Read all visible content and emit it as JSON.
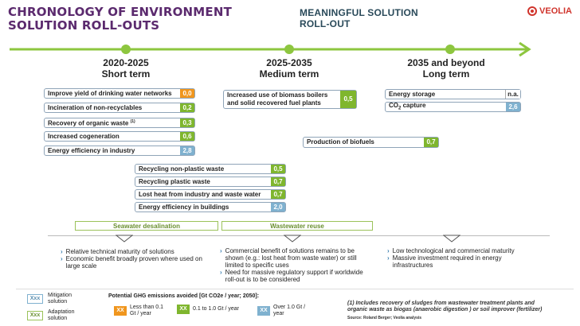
{
  "header": {
    "title_line1": "CHRONOLOGY OF ENVIRONMENT",
    "title_line2": "SOLUTION ROLL-OUTS",
    "subtitle_line1": "MEANINGFUL SOLUTION",
    "subtitle_line2": "ROLL-OUT",
    "logo_text": "VEOLIA"
  },
  "periods": [
    {
      "years": "2020-2025",
      "term": "Short term"
    },
    {
      "years": "2025-2035",
      "term": "Medium term"
    },
    {
      "years": "2035 and beyond",
      "term": "Long term"
    }
  ],
  "short_term": [
    {
      "label": "Improve yield of drinking water networks",
      "value": "0,0"
    },
    {
      "label": "Incineration of non-recyclables",
      "value": "0,2"
    },
    {
      "label": "Recovery of organic waste",
      "sup": "(1)",
      "value": "0,3"
    },
    {
      "label": "Increased cogeneration",
      "value": "0,6"
    },
    {
      "label": "Energy efficiency in industry",
      "value": "2,8"
    }
  ],
  "short_medium": [
    {
      "label": "Recycling non-plastic waste",
      "value": "0,5"
    },
    {
      "label": "Recycling plastic waste",
      "value": "0,7"
    },
    {
      "label": "Lost heat from industry and waste water",
      "value": "0,7"
    },
    {
      "label": "Energy efficiency in buildings",
      "value": "2,0"
    }
  ],
  "medium_term": [
    {
      "label_line1": "Increased use of biomass boilers",
      "label_line2": "and solid recovered fuel plants",
      "value": "0,5"
    },
    {
      "label": "Production of biofuels",
      "value": "0,7"
    }
  ],
  "long_term": [
    {
      "label": "Energy storage",
      "value": "n.a."
    },
    {
      "label": "CO",
      "sub": "2",
      "label_rest": " capture",
      "value": "2,6"
    }
  ],
  "adaptation": {
    "seawater": "Seawater desalination",
    "wastewater": "Wastewater reuse"
  },
  "bullets": {
    "short": [
      "Relative technical maturity of solutions",
      "Economic benefit broadly proven where used on large scale"
    ],
    "medium": [
      "Commercial benefit of solutions remains to be shown (e.g.: lost heat from waste water) or still limited to specific uses",
      "Need for massive regulatory support if worldwide roll-out is to be considered"
    ],
    "long": [
      "Low technological and commercial maturity",
      "Massive investment required in energy infrastructures"
    ]
  },
  "legend": {
    "box_text": "Xxx",
    "mitigation": "Mitigation solution",
    "adaptation": "Adaptation solution",
    "ghg_title": "Potential GHG emissions avoided [Gt CO2e / year; 2050]:",
    "xx": "XX",
    "less": "Less than 0.1 Gt / year",
    "mid": "0.1 to 1.0 Gt / year",
    "over": "Over 1.0 Gt / year"
  },
  "footnote": {
    "line1": "(1) Includes recovery of sludges from wastewater treatment plants and",
    "line2": "organic waste as biogas (anaerobic digestion ) or soil improver (fertilizer)",
    "source": "Source: Roland Berger; Veolia analysis"
  },
  "colors": {
    "orange": "#f0961e",
    "green": "#7fb62e",
    "blue": "#7fb1cf",
    "arrow": "#8dc63f",
    "title": "#5b2a6e",
    "brand": "#d0342c"
  }
}
